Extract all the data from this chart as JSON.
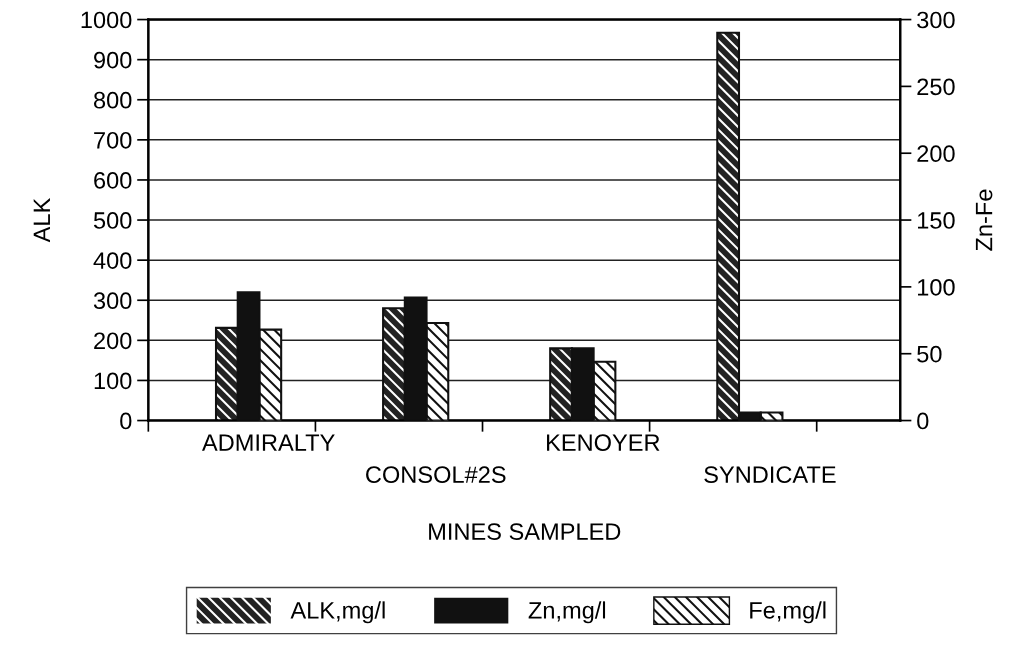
{
  "chart_data": {
    "type": "bar",
    "xlabel": "MINES SAMPLED",
    "ylabel": "ALK",
    "y2label": "Zn-Fe",
    "categories": [
      "ADMIRALTY",
      "CONSOL#2S",
      "KENOYER",
      "SYNDICATE"
    ],
    "series": [
      {
        "name": "ALK,mg/l",
        "color": "#222222",
        "values": [
          231,
          280,
          180,
          967
        ]
      },
      {
        "name": "Zn,mg/l",
        "color": "#111111",
        "axis": "y2",
        "values": [
          96,
          92,
          54,
          6
        ]
      },
      {
        "name": "Fe,mg/l",
        "color": "#ffffff",
        "axis": "y2",
        "values": [
          68,
          73,
          44,
          6
        ]
      }
    ],
    "ylim": [
      0,
      1000
    ],
    "yticks": [
      0,
      100,
      200,
      300,
      400,
      500,
      600,
      700,
      800,
      900,
      1000
    ],
    "y2lim": [
      0,
      300
    ],
    "y2ticks": [
      0,
      50,
      100,
      150,
      200,
      250,
      300
    ],
    "grid": "y",
    "legend": "bottom"
  }
}
